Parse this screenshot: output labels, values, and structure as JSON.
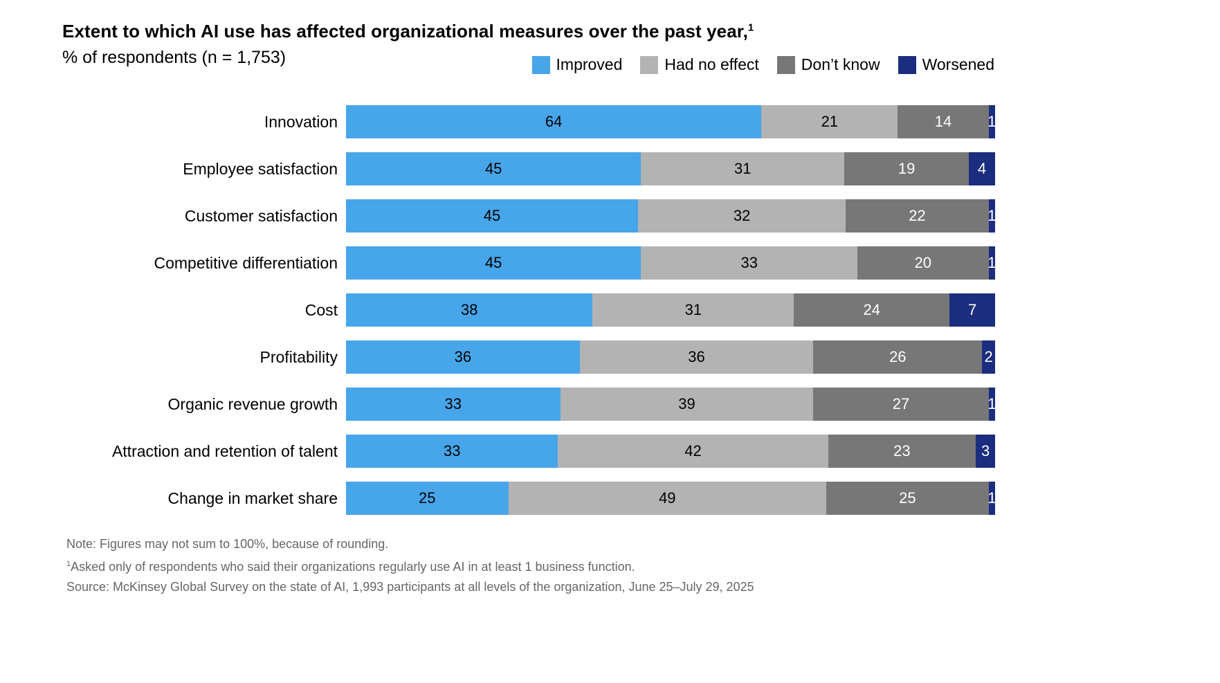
{
  "chart": {
    "title": "Extent to which AI use has affected organizational measures over the past year,",
    "title_superscript": "1",
    "subtitle": "% of respondents (n = 1,753)",
    "legend": [
      {
        "label": "Improved",
        "color": "#47A5EA"
      },
      {
        "label": "Had no effect",
        "color": "#B3B3B3"
      },
      {
        "label": "Don’t know",
        "color": "#777777"
      },
      {
        "label": "Worsened",
        "color": "#1B2D7E"
      }
    ],
    "footnotes": [
      {
        "sup": "",
        "text": "Note: Figures may not sum to 100%, because of rounding."
      },
      {
        "sup": "1",
        "text": "Asked only of respondents who said their organizations regularly use AI in at least 1 business function."
      },
      {
        "sup": "",
        "text": "Source: McKinsey Global Survey on the state of AI, 1,993 participants at all levels of the organization, June 25–July 29, 2025"
      }
    ]
  },
  "chart_data": {
    "type": "bar",
    "orientation": "horizontal",
    "stacked": true,
    "normalized_to_full_width": true,
    "xlim": [
      0,
      100
    ],
    "grid": false,
    "legend_position": "top-right",
    "categories": [
      "Innovation",
      "Employee satisfaction",
      "Customer satisfaction",
      "Competitive differentiation",
      "Cost",
      "Profitability",
      "Organic revenue growth",
      "Attraction and retention of talent",
      "Change in market share"
    ],
    "series": [
      {
        "name": "Improved",
        "color": "#47A5EA",
        "text_color": "#000000",
        "values": [
          64,
          45,
          45,
          45,
          38,
          36,
          33,
          33,
          25
        ]
      },
      {
        "name": "Had no effect",
        "color": "#B3B3B3",
        "text_color": "#000000",
        "values": [
          21,
          31,
          32,
          33,
          31,
          36,
          39,
          42,
          49
        ]
      },
      {
        "name": "Don’t know",
        "color": "#777777",
        "text_color": "#ffffff",
        "values": [
          14,
          19,
          22,
          20,
          24,
          26,
          27,
          23,
          25
        ]
      },
      {
        "name": "Worsened",
        "color": "#1B2D7E",
        "text_color": "#ffffff",
        "values": [
          1,
          4,
          1,
          1,
          7,
          2,
          1,
          3,
          1
        ]
      }
    ]
  }
}
